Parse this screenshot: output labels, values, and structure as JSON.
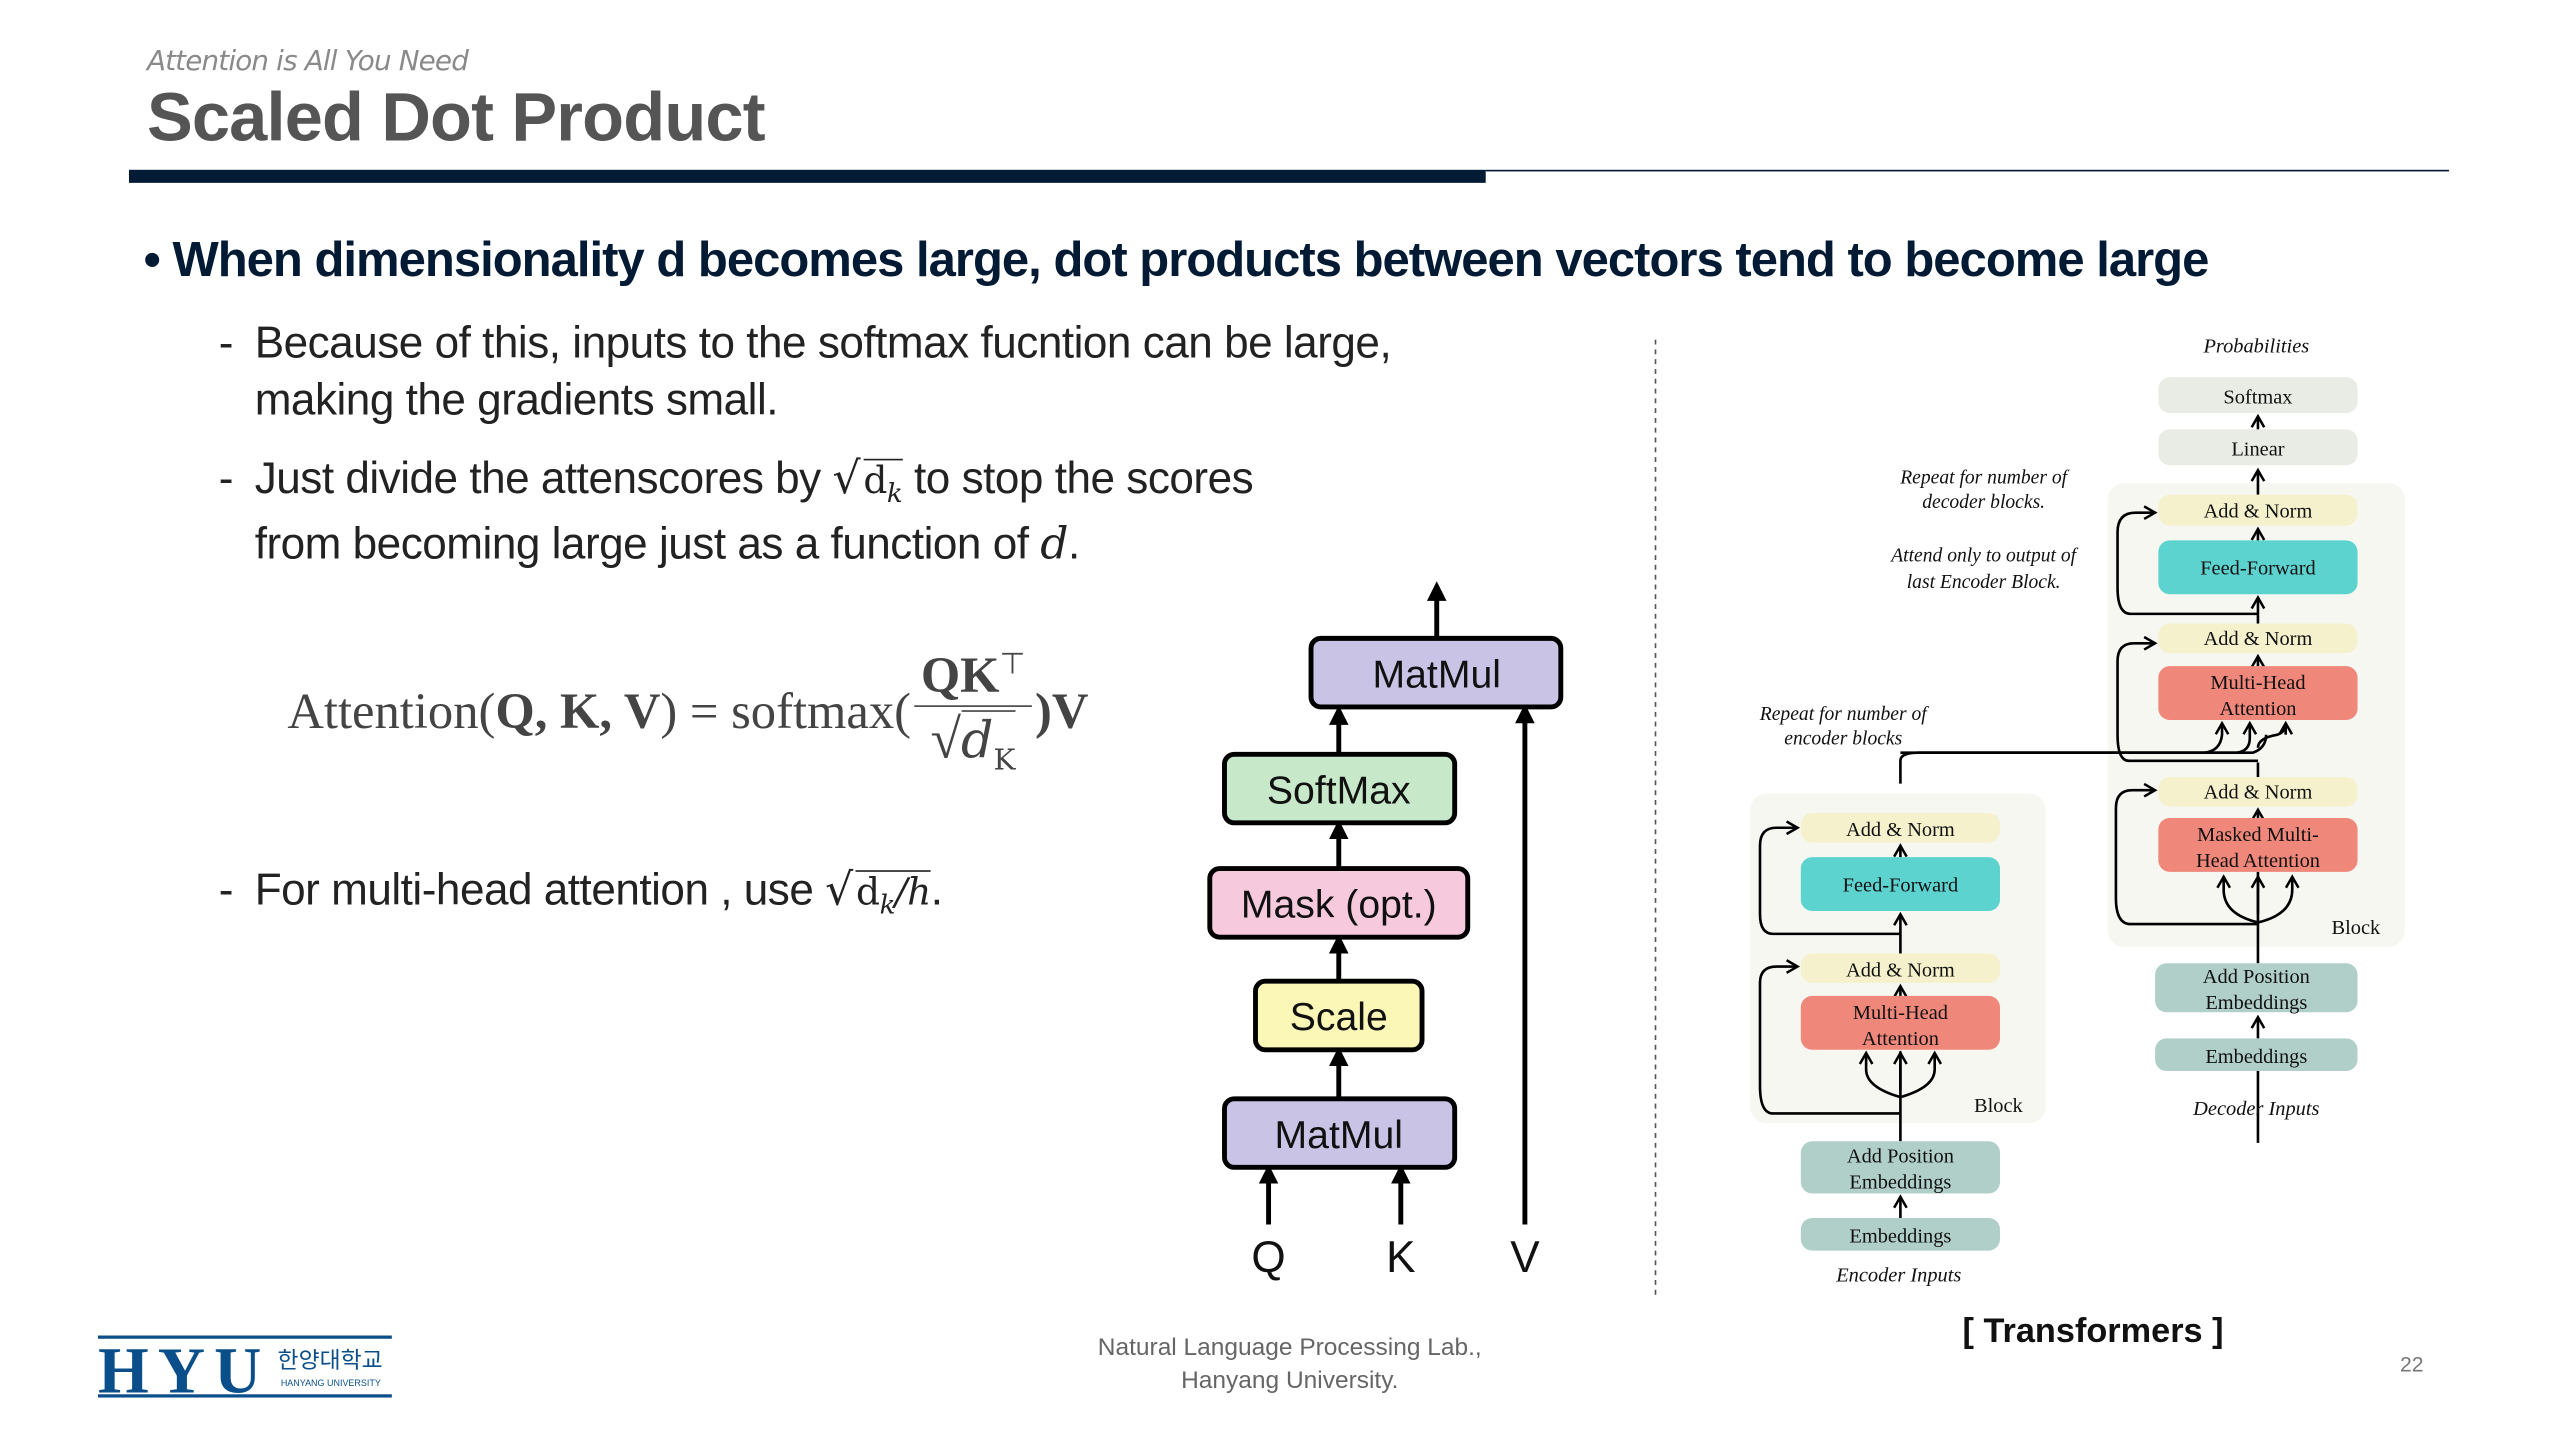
{
  "header": {
    "subtitle": "Attention is All You Need",
    "title": "Scaled Dot Product"
  },
  "content": {
    "bullet": "• When dimensionality d becomes large, dot products between vectors tend to become large",
    "items": [
      {
        "dash": "-",
        "line1": "Because of this, inputs to the softmax fucntion can be large,",
        "line2": "making the gradients small."
      },
      {
        "dash": "-",
        "pre": "Just divide the attenscores by ",
        "sqrt_base": "d",
        "sqrt_sub": "k",
        "post": " to stop the scores",
        "line2_pre": "from becoming large just as a function of ",
        "line2_var": "d",
        "line2_end": "."
      },
      {
        "dash": "-",
        "pre": "For multi-head attention , use ",
        "sqrt_base": "d",
        "sqrt_sub": "k",
        "sqrt_tail": "/h",
        "post": "."
      }
    ],
    "formula": {
      "lhs": "Attention(",
      "args": "Q, K, V",
      "eq": ") = softmax(",
      "numerator": "QK",
      "numerator_sup": "⊤",
      "denominator_base": "d",
      "denominator_sub": "K",
      "rhs": ")V"
    }
  },
  "sdp_diagram": {
    "boxes": [
      "MatMul",
      "SoftMax",
      "Mask (opt.)",
      "Scale",
      "MatMul"
    ],
    "inputs": [
      "Q",
      "K",
      "V"
    ],
    "colors": {
      "matmul": "#c9c3e6",
      "softmax": "#c7e8c9",
      "mask": "#f6c9dd",
      "scale": "#fbf7b7"
    }
  },
  "transformer_diagram": {
    "output_label": "Probabilities",
    "softmax": "Softmax",
    "linear": "Linear",
    "add_norm": "Add & Norm",
    "feed_forward": "Feed-Forward",
    "mha_1": "Multi-Head",
    "mha_2": "Attention",
    "masked_1": "Masked Multi-",
    "masked_2": "Head Attention",
    "block": "Block",
    "pos_1": "Add Position",
    "pos_2": "Embeddings",
    "embeddings": "Embeddings",
    "decoder_inputs": "Decoder Inputs",
    "encoder_inputs": "Encoder Inputs",
    "note_dec_1": "Repeat  for number of",
    "note_dec_2": "decoder blocks.",
    "note_attend_1": "Attend only to output of",
    "note_attend_2": "last Encoder Block.",
    "note_enc_1": "Repeat  for number of",
    "note_enc_2": "encoder blocks",
    "caption": "[ Transformers ]",
    "colors": {
      "gray": "#e9ece4",
      "yellow": "#f5f1cc",
      "teal": "#5dd3cf",
      "red": "#ef877a",
      "sage": "#b1cfc9",
      "block_bg": "#f7f7f2"
    }
  },
  "footer": {
    "logo_text": "HYU",
    "logo_korean": "한양대학교",
    "logo_english": "HANYANG UNIVERSITY",
    "lab_line1": "Natural Language Processing Lab.,",
    "lab_line2": "Hanyang University.",
    "page_number": "22"
  }
}
